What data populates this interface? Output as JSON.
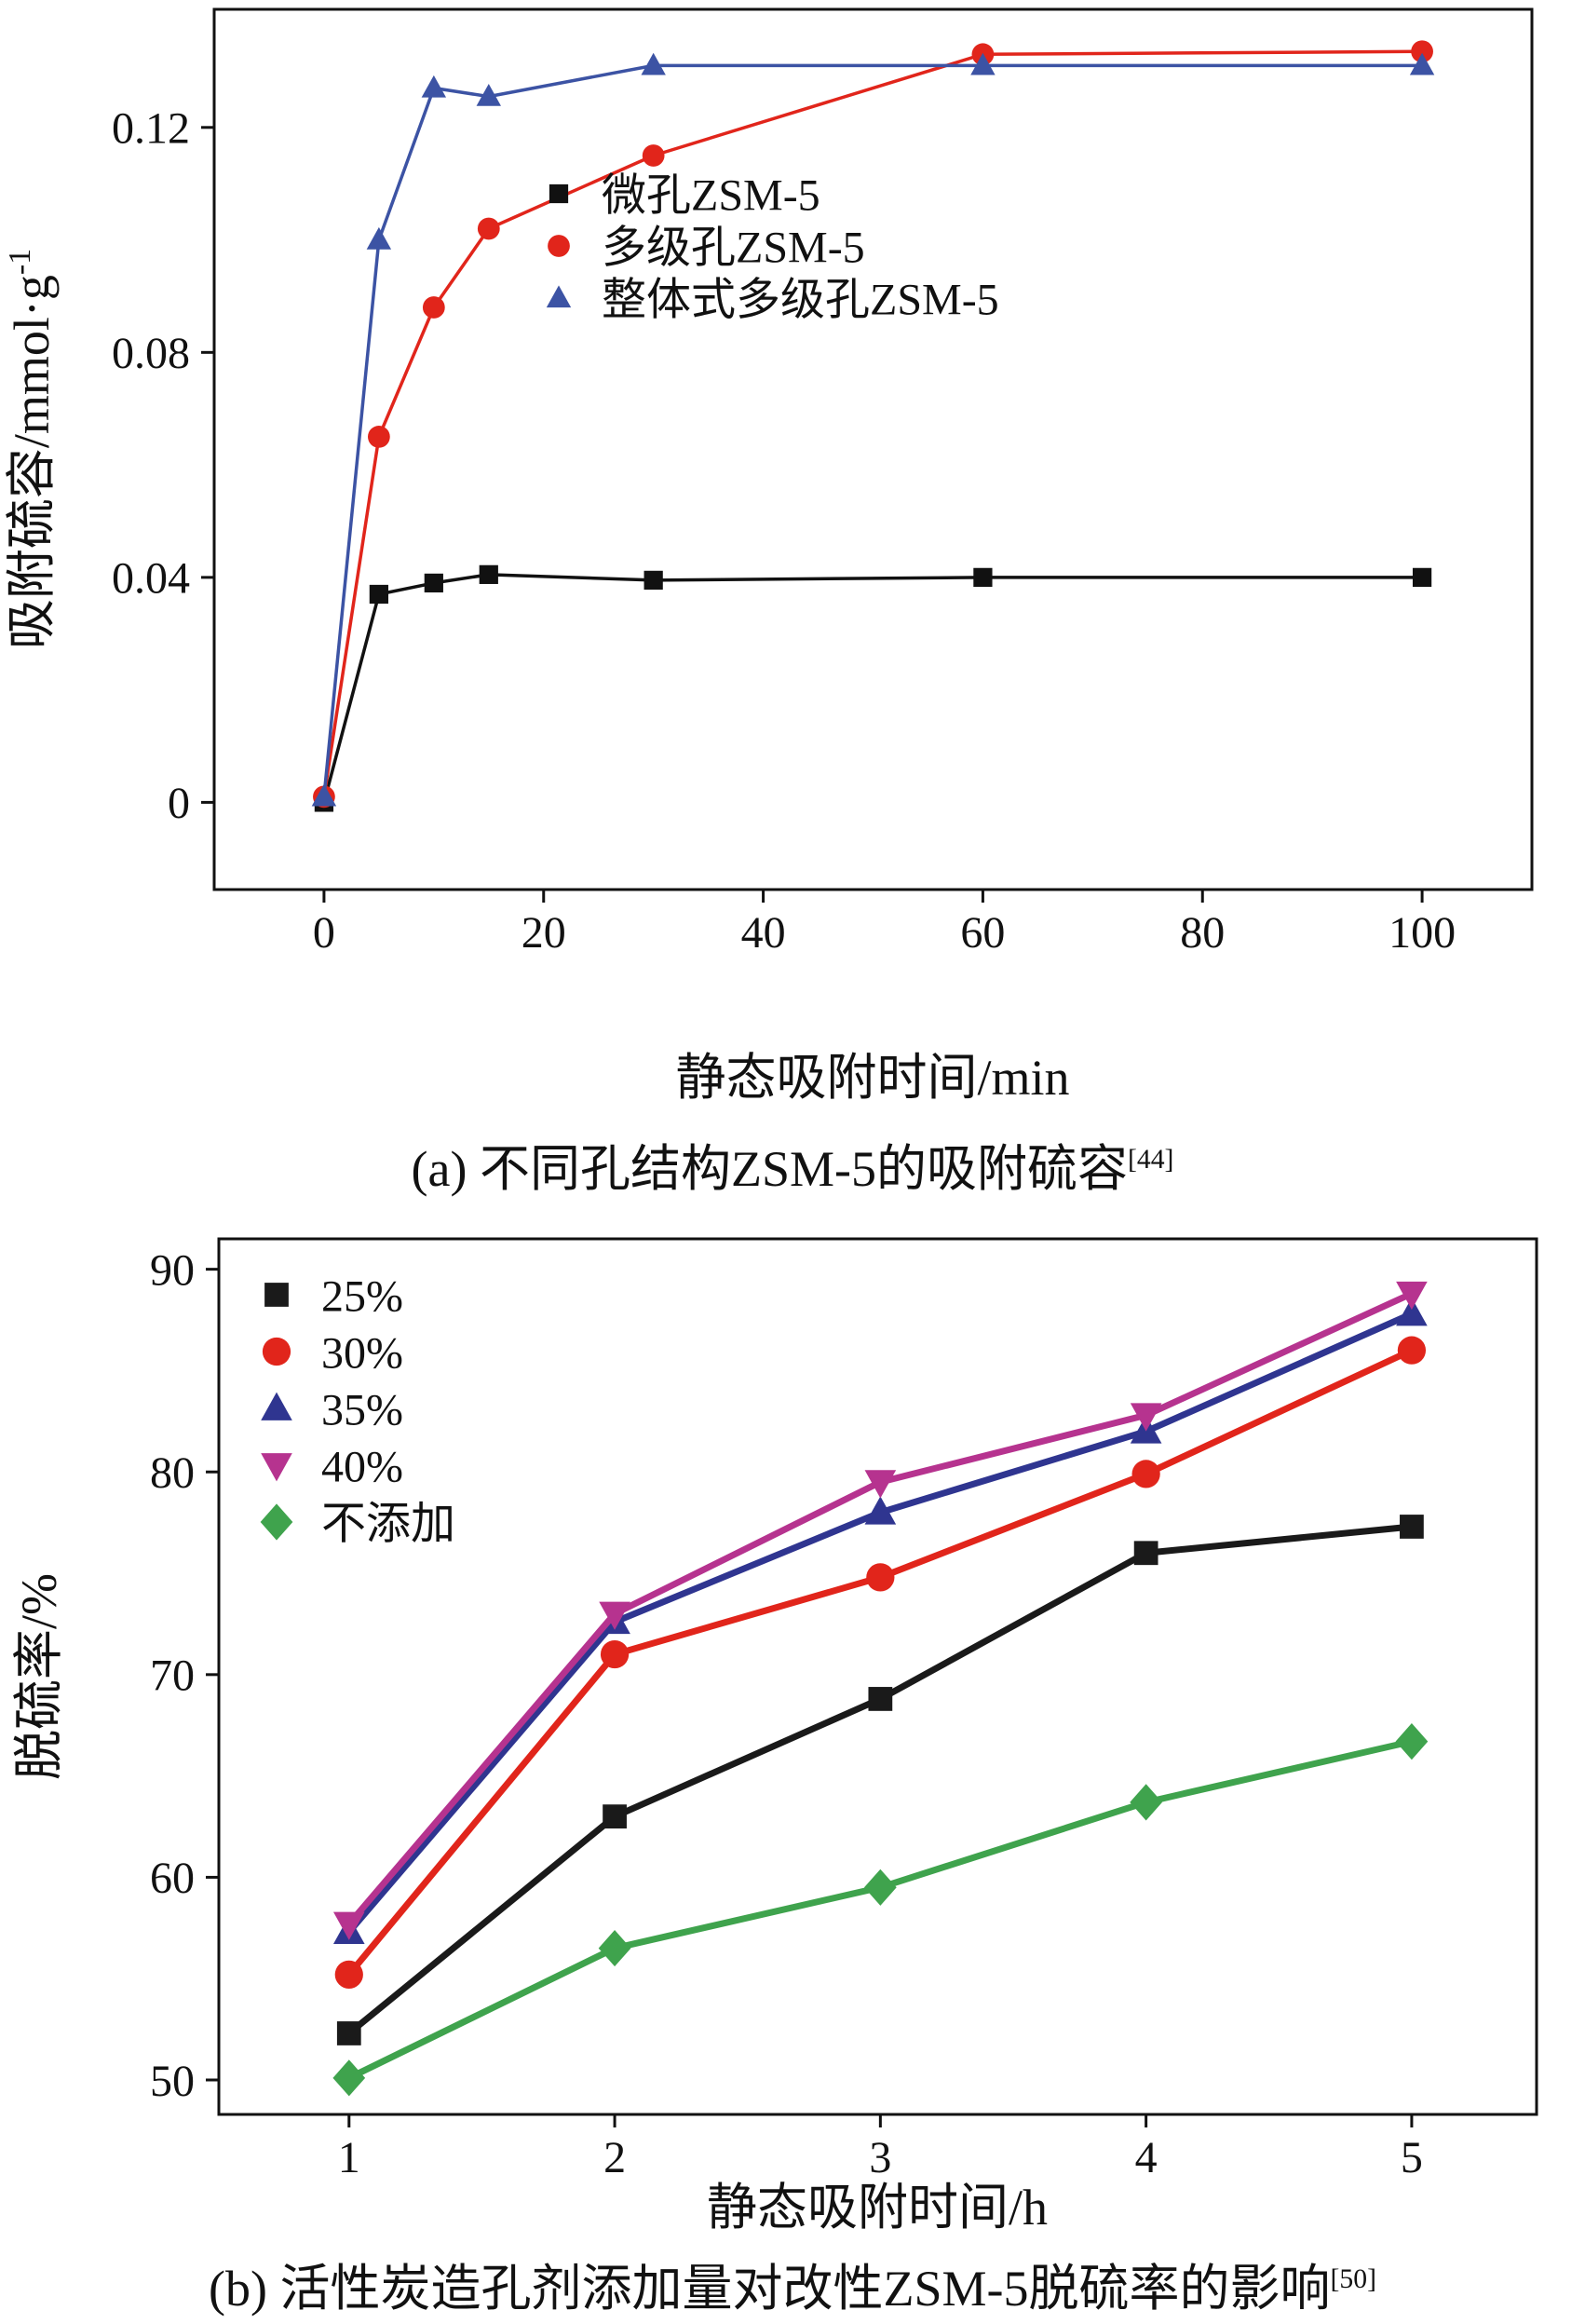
{
  "page": {
    "background": "#ffffff"
  },
  "chart_data": [
    {
      "id": "a",
      "type": "line",
      "xlabel": "静态吸附时间/min",
      "ylabel_main": "吸附硫容/mmol·g",
      "ylabel_sup": "-1",
      "caption": "(a) 不同孔结构ZSM-5的吸附硫容",
      "caption_ref": "[44]",
      "xlim": [
        -10,
        110
      ],
      "ylim": [
        -0.0155,
        0.141
      ],
      "grid": false,
      "legend_position": "center-right",
      "xticks": {
        "values": [
          0,
          20,
          40,
          60,
          80,
          100
        ],
        "labels": [
          "0",
          "20",
          "40",
          "60",
          "80",
          "100"
        ]
      },
      "yticks": {
        "values": [
          0,
          0.04,
          0.08,
          0.12
        ],
        "labels": [
          "0",
          "0.04",
          "0.08",
          "0.12"
        ]
      },
      "series": [
        {
          "name": "微孔ZSM-5",
          "color": "#111111",
          "marker": "square",
          "x": [
            0,
            5,
            10,
            15,
            30,
            60,
            100
          ],
          "y": [
            0.0,
            0.037,
            0.039,
            0.0405,
            0.0395,
            0.04,
            0.04
          ]
        },
        {
          "name": "多级孔ZSM-5",
          "color": "#e1251b",
          "marker": "circle",
          "x": [
            0,
            5,
            10,
            15,
            30,
            60,
            100
          ],
          "y": [
            0.001,
            0.065,
            0.088,
            0.102,
            0.115,
            0.133,
            0.1335
          ]
        },
        {
          "name": "整体式多级孔ZSM-5",
          "color": "#3c53a4",
          "marker": "triangle-up",
          "x": [
            0,
            5,
            10,
            15,
            30,
            60,
            100
          ],
          "y": [
            0.001,
            0.1,
            0.127,
            0.1255,
            0.131,
            0.131,
            0.131
          ]
        }
      ]
    },
    {
      "id": "b",
      "type": "line",
      "xlabel": "静态吸附时间/h",
      "ylabel_main": "脱硫率/%",
      "ylabel_sup": "",
      "caption": "(b) 活性炭造孔剂添加量对改性ZSM-5脱硫率的影响",
      "caption_ref": "[50]",
      "xlim": [
        0.51,
        5.47
      ],
      "ylim": [
        48.3,
        91.5
      ],
      "grid": false,
      "legend_position": "top-left",
      "xticks": {
        "values": [
          1,
          2,
          3,
          4,
          5
        ],
        "labels": [
          "1",
          "2",
          "3",
          "4",
          "5"
        ]
      },
      "yticks": {
        "values": [
          50,
          60,
          70,
          80,
          90
        ],
        "labels": [
          "50",
          "60",
          "70",
          "80",
          "90"
        ]
      },
      "series": [
        {
          "name": "25%",
          "color": "#1a1a1a",
          "marker": "square",
          "x": [
            1,
            2,
            3,
            4,
            5
          ],
          "y": [
            52.3,
            63.0,
            68.8,
            76.0,
            77.3
          ]
        },
        {
          "name": "30%",
          "color": "#e1251b",
          "marker": "circle",
          "x": [
            1,
            2,
            3,
            4,
            5
          ],
          "y": [
            55.2,
            71.0,
            74.8,
            79.9,
            86.0
          ]
        },
        {
          "name": "35%",
          "color": "#2f3590",
          "marker": "triangle-up",
          "x": [
            1,
            2,
            3,
            4,
            5
          ],
          "y": [
            57.3,
            72.6,
            78.0,
            82.0,
            87.8
          ]
        },
        {
          "name": "40%",
          "color": "#b6338f",
          "marker": "triangle-down",
          "x": [
            1,
            2,
            3,
            4,
            5
          ],
          "y": [
            57.7,
            73.0,
            79.5,
            82.8,
            88.8
          ]
        },
        {
          "name": "不添加",
          "color": "#3fa34d",
          "marker": "diamond",
          "x": [
            1,
            2,
            3,
            4,
            5
          ],
          "y": [
            50.1,
            56.5,
            59.5,
            63.7,
            66.7
          ]
        }
      ]
    }
  ]
}
